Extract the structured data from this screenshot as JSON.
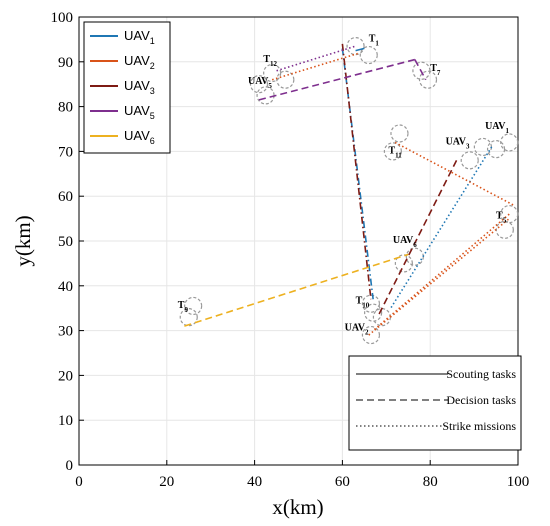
{
  "chart_data": {
    "type": "line",
    "xlabel": "x(km)",
    "ylabel": "y(km)",
    "xlim": [
      0,
      100
    ],
    "ylim": [
      0,
      100
    ],
    "xticks": [
      0,
      20,
      40,
      60,
      80,
      100
    ],
    "yticks": [
      0,
      10,
      20,
      30,
      40,
      50,
      60,
      70,
      80,
      90,
      100
    ],
    "grid": true,
    "legend_position": "top-left",
    "series": [
      {
        "base": "UAV",
        "sub": "1",
        "color": "#1f77b4"
      },
      {
        "base": "UAV",
        "sub": "2",
        "color": "#d95319"
      },
      {
        "base": "UAV",
        "sub": "3",
        "color": "#7e1b14"
      },
      {
        "base": "UAV",
        "sub": "5",
        "color": "#7e2f8e"
      },
      {
        "base": "UAV",
        "sub": "6",
        "color": "#edb120"
      }
    ],
    "style_legend": [
      {
        "label": "Scouting tasks",
        "dash": "solid"
      },
      {
        "label": "Decision tasks",
        "dash": "dashed"
      },
      {
        "label": "Strike missions",
        "dash": "dotted"
      }
    ],
    "paths": [
      {
        "color": "#1f77b4",
        "dash": "dashdot",
        "points": [
          [
            60,
            93
          ],
          [
            67,
            37
          ]
        ]
      },
      {
        "color": "#7e1b14",
        "dash": "dashdot",
        "points": [
          [
            60,
            94
          ],
          [
            66.5,
            37
          ]
        ]
      },
      {
        "color": "#1f77b4",
        "dash": "dotted",
        "points": [
          [
            94,
            71
          ],
          [
            71,
            35
          ]
        ]
      },
      {
        "color": "#d95319",
        "dash": "dotted",
        "points": [
          [
            72,
            72
          ],
          [
            99,
            58
          ]
        ]
      },
      {
        "color": "#d95319",
        "dash": "dotted",
        "points": [
          [
            98,
            56
          ],
          [
            67,
            30
          ]
        ]
      },
      {
        "color": "#d95319",
        "dash": "dotted",
        "points": [
          [
            66,
            29
          ],
          [
            98,
            55
          ]
        ]
      },
      {
        "color": "#7e1b14",
        "dash": "dashed",
        "points": [
          [
            86,
            68
          ],
          [
            68,
            33
          ]
        ]
      },
      {
        "color": "#7e2f8e",
        "dash": "dashed",
        "points": [
          [
            41,
            81.5
          ],
          [
            76.5,
            90.5
          ]
        ]
      },
      {
        "color": "#7e2f8e",
        "dash": "dashed",
        "points": [
          [
            76.5,
            90.5
          ],
          [
            79,
            86
          ]
        ]
      },
      {
        "color": "#d95319",
        "dash": "dotted",
        "points": [
          [
            44,
            86
          ],
          [
            64,
            92
          ]
        ]
      },
      {
        "color": "#7e2f8e",
        "dash": "dotted",
        "points": [
          [
            45,
            88
          ],
          [
            63,
            93.5
          ]
        ]
      },
      {
        "color": "#edb120",
        "dash": "dashed",
        "points": [
          [
            24,
            31
          ],
          [
            75,
            47
          ]
        ]
      },
      {
        "color": "#1f77b4",
        "dash": "solid",
        "points": [
          [
            63,
            92.5
          ],
          [
            65,
            93
          ]
        ]
      }
    ],
    "circles": [
      [
        63,
        93.5
      ],
      [
        66,
        91.5
      ],
      [
        44,
        87.5
      ],
      [
        47,
        86
      ],
      [
        41,
        85
      ],
      [
        42.5,
        82.5
      ],
      [
        78,
        88
      ],
      [
        79.5,
        86
      ],
      [
        71.5,
        70
      ],
      [
        73,
        74
      ],
      [
        89,
        68
      ],
      [
        92,
        71
      ],
      [
        95,
        70.5
      ],
      [
        98,
        72
      ],
      [
        98,
        56
      ],
      [
        97,
        52.5
      ],
      [
        74,
        45
      ],
      [
        76.5,
        46.5
      ],
      [
        66.5,
        36
      ],
      [
        67,
        34
      ],
      [
        69,
        33
      ],
      [
        66.5,
        29
      ],
      [
        25,
        33
      ],
      [
        26,
        35.5
      ]
    ],
    "annotations": [
      {
        "base": "T",
        "sub": "1",
        "x": 66,
        "y": 94.5
      },
      {
        "base": "T",
        "sub": "12",
        "x": 42,
        "y": 90
      },
      {
        "base": "UAV",
        "sub": "5",
        "x": 38.5,
        "y": 85
      },
      {
        "base": "T",
        "sub": "7",
        "x": 80,
        "y": 88
      },
      {
        "base": "UAV",
        "sub": "1",
        "x": 92.5,
        "y": 75
      },
      {
        "base": "UAV",
        "sub": "3",
        "x": 83.5,
        "y": 71.5
      },
      {
        "base": "T",
        "sub": "11",
        "x": 70.5,
        "y": 69.5
      },
      {
        "base": "T",
        "sub": "5",
        "x": 95,
        "y": 55
      },
      {
        "base": "UAV",
        "sub": "6",
        "x": 71.5,
        "y": 49.5
      },
      {
        "base": "T",
        "sub": "10",
        "x": 63,
        "y": 36
      },
      {
        "base": "T",
        "sub": "9",
        "x": 22.5,
        "y": 35
      },
      {
        "base": "UAV",
        "sub": "2",
        "x": 60.5,
        "y": 30
      }
    ]
  }
}
